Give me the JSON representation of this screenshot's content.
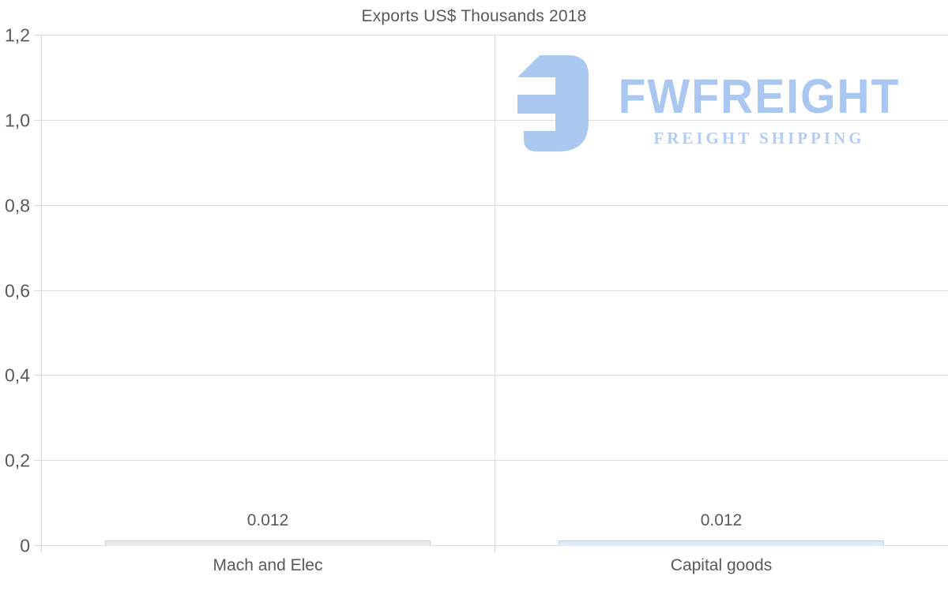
{
  "page": {
    "background": "#ffffff"
  },
  "chart_data": {
    "type": "bar",
    "title": "Exports US$ Thousands 2018",
    "categories": [
      "Mach and Elec",
      "Capital goods"
    ],
    "values": [
      0.012,
      0.012
    ],
    "value_labels": [
      "0.012",
      "0.012"
    ],
    "series": [
      {
        "name": "Mach and Elec",
        "value": 0.012,
        "fill": "#e9e9e9",
        "edge": "#d2d2d2"
      },
      {
        "name": "Capital goods",
        "value": 0.012,
        "fill": "#ddeafa",
        "edge": "#bcd6f0"
      }
    ],
    "xlabel": "",
    "ylabel": "",
    "ylim": [
      0,
      1.2
    ],
    "y_ticks": [
      {
        "value": 0.0,
        "label": "0"
      },
      {
        "value": 0.2,
        "label": "0,2"
      },
      {
        "value": 0.4,
        "label": "0,4"
      },
      {
        "value": 0.6,
        "label": "0,6"
      },
      {
        "value": 0.8,
        "label": "0,8"
      },
      {
        "value": 1.0,
        "label": "1,0"
      },
      {
        "value": 1.2,
        "label": "1,2"
      }
    ],
    "grid": "horizontal gridlines at each y tick, vertical divider between categories",
    "legend": "none",
    "decimal_style": {
      "axis_labels": "comma",
      "data_labels": "period"
    }
  },
  "watermark": {
    "brand": "FWFREIGHT",
    "tagline": "FREIGHT SHIPPING",
    "icon": "fwfreight-logo-mark",
    "color_primary": "#a9c7f1",
    "color_tagline": "#b3ccf3"
  },
  "colors": {
    "title_text": "#595959",
    "axis_text": "#595959",
    "label_text": "#595959",
    "gridline": "#e0e0e0",
    "axis_line": "#d6d6d6"
  }
}
